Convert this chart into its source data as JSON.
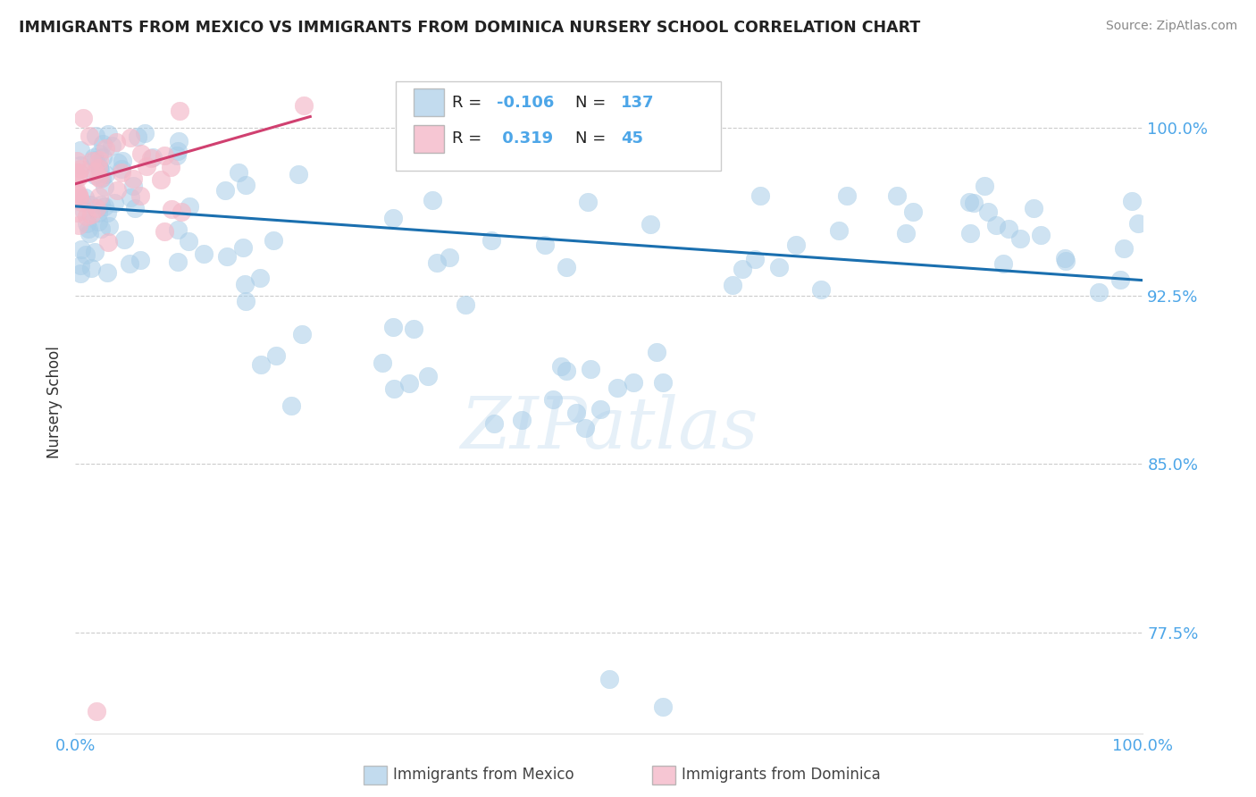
{
  "title": "IMMIGRANTS FROM MEXICO VS IMMIGRANTS FROM DOMINICA NURSERY SCHOOL CORRELATION CHART",
  "source": "Source: ZipAtlas.com",
  "ylabel": "Nursery School",
  "legend_labels": [
    "Immigrants from Mexico",
    "Immigrants from Dominica"
  ],
  "r_mexico": -0.106,
  "n_mexico": 137,
  "r_dominica": 0.319,
  "n_dominica": 45,
  "xlim": [
    0.0,
    1.0
  ],
  "ylim": [
    0.73,
    1.025
  ],
  "yticks": [
    0.775,
    0.85,
    0.925,
    1.0
  ],
  "ytick_labels": [
    "77.5%",
    "85.0%",
    "92.5%",
    "100.0%"
  ],
  "xtick_labels": [
    "0.0%",
    "100.0%"
  ],
  "xticks": [
    0.0,
    1.0
  ],
  "blue_color": "#a8cde8",
  "pink_color": "#f4b8c8",
  "line_blue": "#1a6faf",
  "line_pink": "#d04070",
  "axis_color": "#4da6e8",
  "blue_line_x0": 0.0,
  "blue_line_y0": 0.965,
  "blue_line_x1": 1.0,
  "blue_line_y1": 0.932,
  "pink_line_x0": 0.0,
  "pink_line_y0": 0.975,
  "pink_line_x1": 0.22,
  "pink_line_y1": 1.005
}
